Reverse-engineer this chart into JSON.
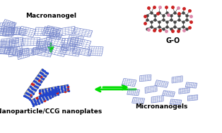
{
  "bg_color": "#ffffff",
  "labels": {
    "top_left": "Nanoparticle/CCG nanoplates",
    "top_right": "G-O",
    "bottom_left": "Macronanogel",
    "bottom_right": "Micronanogels"
  },
  "label_fontsize": 6.5,
  "label_fontsize_small": 7.0,
  "arrow_color": "#00dd00",
  "nanoplate_face": "#c8c8c8",
  "nanoplate_edge": "#666666",
  "nanoplate_dot_blue": "#2244cc",
  "nanoplate_dot_red": "#cc2222",
  "go_carbon": "#444444",
  "go_oxygen_red": "#cc2222",
  "go_oxygen_pink": "#dd88aa",
  "go_bond": "#555555",
  "hydrogel_color": "#7788cc",
  "label_fontweight": "bold",
  "fig_w": 3.14,
  "fig_h": 1.89,
  "dpi": 100,
  "plate_configs": [
    [
      50,
      68,
      44,
      11,
      55
    ],
    [
      75,
      60,
      40,
      10,
      10
    ],
    [
      62,
      50,
      38,
      10,
      25
    ]
  ],
  "micro_positions": [
    [
      182,
      72,
      18,
      9,
      -8
    ],
    [
      205,
      78,
      16,
      8,
      5
    ],
    [
      228,
      70,
      17,
      8,
      -10
    ],
    [
      250,
      76,
      15,
      8,
      8
    ],
    [
      270,
      68,
      15,
      7,
      -5
    ],
    [
      188,
      58,
      16,
      8,
      -5
    ],
    [
      213,
      62,
      17,
      8,
      10
    ],
    [
      238,
      56,
      16,
      7,
      -8
    ],
    [
      260,
      60,
      15,
      7,
      6
    ],
    [
      195,
      46,
      16,
      8,
      -6
    ],
    [
      222,
      48,
      17,
      8,
      8
    ],
    [
      248,
      44,
      15,
      7,
      -5
    ],
    [
      272,
      50,
      14,
      7,
      5
    ]
  ]
}
